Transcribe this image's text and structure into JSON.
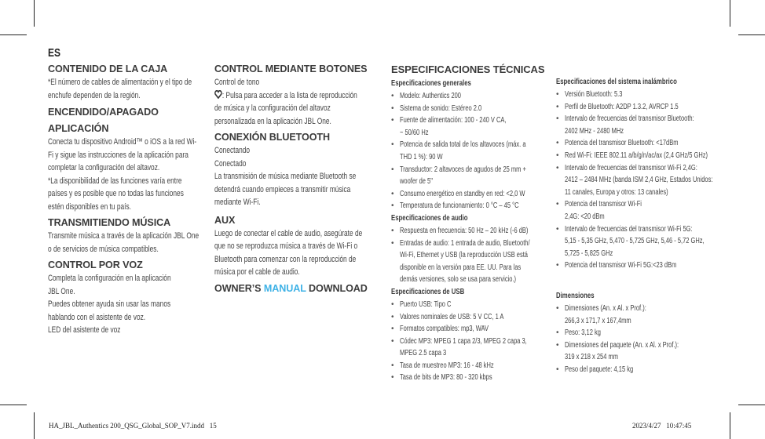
{
  "lang": "ES",
  "col1": {
    "contenido_title": "CONTENIDO DE LA CAJA",
    "contenido_body": "*El número de cables de alimentación y el tipo de\nenchufe dependen de la región.",
    "encendido_title": "ENCENDIDO/APAGADO",
    "aplicacion_title": "APLICACIÓN",
    "aplicacion_body": "Conecta tu dispositivo Android™ o iOS a la red Wi-\nFi y sigue las instrucciones de la aplicación para\ncompletar la configuración del altavoz.\n*La disponibilidad de las funciones varía entre\npaíses y es posible que no todas las funciones\nestén disponibles en tu país.",
    "transmitiendo_title": "TRANSMITIENDO MÚSICA",
    "transmitiendo_body": "Transmite música a través de la aplicación JBL One\no de servicios de música compatibles.",
    "voz_title": "CONTROL POR VOZ",
    "voz_body": "Completa la configuración en la aplicación\nJBL One.\nPuedes obtener ayuda sin usar las manos\nhablando con el asistente de voz.\nLED del asistente de voz"
  },
  "col2": {
    "botones_title": "CONTROL MEDIANTE BOTONES",
    "tono": "Control de tono",
    "heart_text": ": Pulsa para acceder a la lista de reproducción",
    "heart_body": "de música y la configuración del altavoz\npersonalizada en la aplicación JBL One.",
    "bt_title": "CONEXIÓN BLUETOOTH",
    "bt_body": "Conectando\nConectado\nLa transmisión de música mediante Bluetooth se\ndetendrá cuando empieces a transmitir música\nmediante Wi-Fi.",
    "aux_title": "AUX",
    "aux_body": "Luego de conectar el cable de audio, asegúrate de\nque no se reproduzca música a través de Wi-Fi o\nBluetooth para comenzar con la reproducción de\nmúsica por el cable de audio.",
    "owners_a": "OWNER’S ",
    "owners_b": "MANUAL",
    "owners_c": " DOWNLOAD",
    "accent": "#3fb2e6"
  },
  "specs": {
    "title": "ESPECIFICACIONES TÉCNICAS",
    "general_title": "Especificaciones generales",
    "general": [
      "Modelo: Authentics 200",
      "Sistema de sonido: Estéreo 2.0",
      "Fuente de alimentación: 100 - 240 V CA,\n~ 50/60 Hz",
      "Potencia de salida total de los altavoces (máx. a\nTHD 1 %): 90 W",
      "Transductor: 2 altavoces de agudos de 25 mm +\nwoofer de 5\"",
      "Consumo energético en standby en red: <2,0 W",
      "Temperatura de funcionamiento: 0 °C – 45 °C"
    ],
    "audio_title": "Especificaciones de audio",
    "audio": [
      "Respuesta en frecuencia: 50 Hz – 20 kHz (-6 dB)",
      "Entradas de audio: 1 entrada de audio, Bluetooth/\nWi-Fi, Ethernet y USB (la reproducción USB está\ndisponible en la versión para EE. UU. Para las\ndemás versiones, solo se usa para servicio.)"
    ],
    "usb_title": "Especificaciones de USB",
    "usb": [
      "Puerto USB: Tipo C",
      "Valores nominales de USB: 5 V CC, 1 A",
      "Formatos compatibles: mp3, WAV",
      "Códec MP3: MPEG 1 capa 2/3, MPEG 2 capa 3,\nMPEG 2.5 capa 3",
      "Tasa de muestreo MP3: 16 - 48 kHz",
      "Tasa de bits de MP3: 80 - 320 kbps"
    ],
    "wireless_title": "Especificaciones del sistema inalámbrico",
    "wireless": [
      "Versión Bluetooth: 5.3",
      "Perfil de Bluetooth: A2DP 1.3.2, AVRCP 1.5",
      "Intervalo de frecuencias del transmisor Bluetooth:\n2402 MHz - 2480 MHz",
      "Potencia del transmisor Bluetooth: <17dBm",
      "Red Wi-Fi: IEEE 802.11 a/b/g/n/ac/ax (2,4 GHz/5 GHz)",
      "Intervalo de frecuencias del transmisor Wi-Fi 2,4G:\n2412 – 2484 MHz (banda ISM 2,4 GHz, Estados Unidos:\n11 canales, Europa y otros: 13 canales)",
      "Potencia del transmisor Wi-Fi\n2,4G: <20 dBm",
      "Intervalo de frecuencias del transmisor Wi-Fi 5G:\n5,15 - 5,35 GHz, 5,470 - 5,725 GHz, 5,46 - 5,72 GHz,\n5,725 - 5,825 GHz",
      "Potencia del transmisor Wi-Fi 5G:<23 dBm"
    ],
    "dim_title": "Dimensiones",
    "dim": [
      "Dimensiones (An. x Al. x Prof.):\n266,3 x 171,7 x 167,4mm",
      "Peso: 3,12 kg",
      "Dimensiones del paquete (An. x Al. x Prof.):\n319 x 218 x 254 mm",
      "Peso del paquete: 4,15 kg"
    ]
  },
  "footer": {
    "file": "HA_JBL_Authentics 200_QSG_Global_SOP_V7.indd   15",
    "stamp": "2023/4/27   10:47:45"
  }
}
